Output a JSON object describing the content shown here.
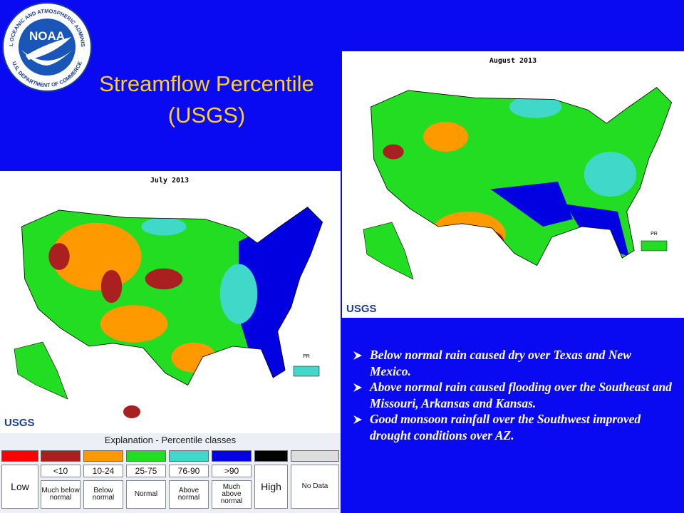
{
  "logo": {
    "name": "NOAA",
    "ring_top": "NATIONAL OCEANIC AND ATMOSPHERIC ADMINISTRATION",
    "ring_bottom": "U.S. DEPARTMENT OF COMMERCE"
  },
  "title": [
    "Streamflow Percentile",
    "(USGS)"
  ],
  "maps": [
    {
      "title": "July 2013",
      "credit": "USGS",
      "territory": "PR"
    },
    {
      "title": "August 2013",
      "credit": "USGS",
      "territory": "PR"
    }
  ],
  "legend": {
    "title": "Explanation - Percentile classes",
    "low": "Low",
    "high": "High",
    "no_data": "No Data",
    "classes": [
      {
        "range": "<10",
        "label": "Much below normal"
      },
      {
        "range": "10-24",
        "label": "Below normal"
      },
      {
        "range": "25-75",
        "label": "Normal"
      },
      {
        "range": "76-90",
        "label": "Above normal"
      },
      {
        "range": ">90",
        "label": "Much above normal"
      }
    ]
  },
  "bullets": [
    "Below normal rain caused dry over Texas and New Mexico.",
    "Above normal rain caused flooding over the Southeast and Missouri, Arkansas and Kansas.",
    "Good monsoon rainfall over the Southwest improved drought conditions over AZ."
  ]
}
